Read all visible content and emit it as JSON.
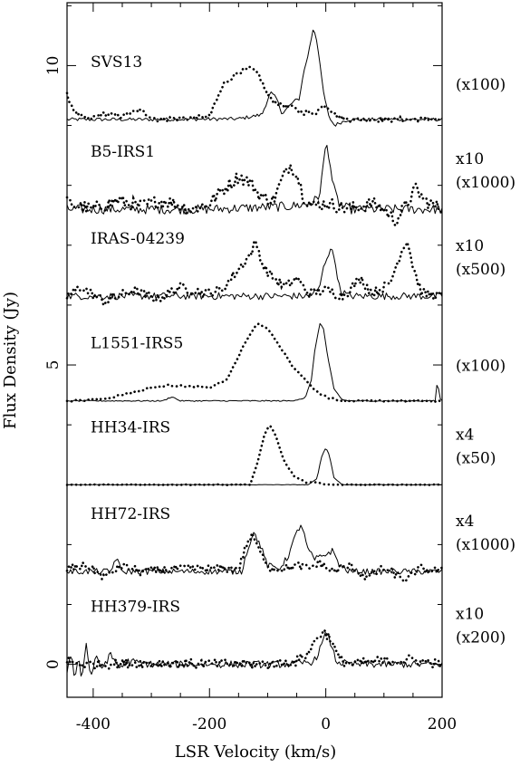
{
  "chart_data": {
    "type": "line",
    "xlabel": "LSR Velocity (km/s)",
    "ylabel": "Flux Density (Jy)",
    "xlim": [
      -445,
      200
    ],
    "ylim": [
      -0.55,
      11.05
    ],
    "xticks": [
      -400,
      -200,
      0,
      200
    ],
    "xtick_labels": [
      "-400",
      "-200",
      "0",
      "200"
    ],
    "yticks": [
      0,
      5,
      10
    ],
    "ytick_labels": [
      "0",
      "5",
      "10"
    ],
    "grid": false,
    "legend": "none",
    "line_styles": {
      "solid": "solid",
      "dotted": "dotted"
    },
    "panels": [
      {
        "label": "SVS13",
        "scale_labels": [
          "(x100)"
        ],
        "baseline": 9.1,
        "noise": 0.03,
        "solid": [
          [
            -445,
            0
          ],
          [
            -340,
            0
          ],
          [
            -300,
            0
          ],
          [
            -150,
            0.01
          ],
          [
            -110,
            0.08
          ],
          [
            -95,
            0.45
          ],
          [
            -85,
            0.35
          ],
          [
            -75,
            0.1
          ],
          [
            -65,
            0.2
          ],
          [
            -55,
            0.3
          ],
          [
            -45,
            0.35
          ],
          [
            -40,
            0.7
          ],
          [
            -30,
            1.1
          ],
          [
            -22,
            1.5
          ],
          [
            -18,
            1.45
          ],
          [
            -12,
            1.1
          ],
          [
            -5,
            0.5
          ],
          [
            5,
            0.05
          ],
          [
            15,
            -0.1
          ],
          [
            25,
            -0.05
          ],
          [
            40,
            0
          ],
          [
            200,
            0
          ]
        ],
        "dotted": [
          [
            -445,
            0.4
          ],
          [
            -430,
            0.1
          ],
          [
            -410,
            0
          ],
          [
            -380,
            0.1
          ],
          [
            -355,
            0.05
          ],
          [
            -320,
            0.15
          ],
          [
            -290,
            0
          ],
          [
            -250,
            0.02
          ],
          [
            -200,
            0.05
          ],
          [
            -175,
            0.6
          ],
          [
            -150,
            0.8
          ],
          [
            -130,
            0.85
          ],
          [
            -115,
            0.75
          ],
          [
            -100,
            0.4
          ],
          [
            -80,
            0.25
          ],
          [
            -60,
            0.2
          ],
          [
            -40,
            0.12
          ],
          [
            -20,
            0.1
          ],
          [
            0,
            0.25
          ],
          [
            20,
            0.05
          ],
          [
            40,
            0
          ],
          [
            200,
            0
          ]
        ]
      },
      {
        "label": "B5-IRS1",
        "scale_labels": [
          "x10",
          "(x1000)"
        ],
        "baseline": 7.6,
        "noise": 0.08,
        "solid": [
          [
            -445,
            0
          ],
          [
            -200,
            0
          ],
          [
            -60,
            0.05
          ],
          [
            -25,
            0.1
          ],
          [
            -12,
            0.2
          ],
          [
            -5,
            0.65
          ],
          [
            0,
            1.1
          ],
          [
            6,
            0.9
          ],
          [
            12,
            0.4
          ],
          [
            22,
            0.1
          ],
          [
            40,
            0
          ],
          [
            200,
            0
          ]
        ],
        "dotted": [
          [
            -445,
            0.1
          ],
          [
            -400,
            0
          ],
          [
            -360,
            0.15
          ],
          [
            -320,
            0.05
          ],
          [
            -280,
            0.15
          ],
          [
            -230,
            0
          ],
          [
            -200,
            0.1
          ],
          [
            -180,
            0.3
          ],
          [
            -150,
            0.55
          ],
          [
            -130,
            0.45
          ],
          [
            -110,
            0.2
          ],
          [
            -90,
            0.15
          ],
          [
            -75,
            0.5
          ],
          [
            -62,
            0.75
          ],
          [
            -50,
            0.6
          ],
          [
            -38,
            0.2
          ],
          [
            -20,
            0.05
          ],
          [
            0,
            0.1
          ],
          [
            40,
            0
          ],
          [
            80,
            0.1
          ],
          [
            100,
            0
          ],
          [
            120,
            -0.2
          ],
          [
            140,
            0.1
          ],
          [
            155,
            0.35
          ],
          [
            170,
            0.15
          ],
          [
            200,
            0
          ]
        ]
      },
      {
        "label": "IRAS-04239",
        "scale_labels": [
          "x10",
          "(x500)"
        ],
        "baseline": 6.15,
        "noise": 0.06,
        "solid": [
          [
            -445,
            0
          ],
          [
            -30,
            0
          ],
          [
            -12,
            0.1
          ],
          [
            -2,
            0.55
          ],
          [
            8,
            0.8
          ],
          [
            16,
            0.6
          ],
          [
            24,
            0.1
          ],
          [
            40,
            0
          ],
          [
            200,
            0
          ]
        ],
        "dotted": [
          [
            -445,
            0
          ],
          [
            -420,
            0.15
          ],
          [
            -380,
            -0.1
          ],
          [
            -330,
            0.1
          ],
          [
            -290,
            -0.05
          ],
          [
            -250,
            0.15
          ],
          [
            -210,
            0.05
          ],
          [
            -180,
            0.1
          ],
          [
            -150,
            0.45
          ],
          [
            -130,
            0.7
          ],
          [
            -120,
            0.9
          ],
          [
            -108,
            0.5
          ],
          [
            -90,
            0.3
          ],
          [
            -70,
            0.15
          ],
          [
            -50,
            0.3
          ],
          [
            -30,
            0.05
          ],
          [
            0,
            0.1
          ],
          [
            30,
            0
          ],
          [
            60,
            0.3
          ],
          [
            80,
            0.05
          ],
          [
            110,
            0.2
          ],
          [
            128,
            0.7
          ],
          [
            140,
            0.95
          ],
          [
            150,
            0.5
          ],
          [
            165,
            0.05
          ],
          [
            200,
            0
          ]
        ]
      },
      {
        "label": "L1551-IRS5",
        "scale_labels": [
          "(x100)"
        ],
        "baseline": 4.4,
        "noise": 0.01,
        "solid": [
          [
            -445,
            0
          ],
          [
            -280,
            0
          ],
          [
            -265,
            0.07
          ],
          [
            -250,
            0
          ],
          [
            -60,
            0
          ],
          [
            -35,
            0.05
          ],
          [
            -25,
            0.35
          ],
          [
            -18,
            0.9
          ],
          [
            -10,
            1.3
          ],
          [
            -4,
            1.2
          ],
          [
            4,
            0.7
          ],
          [
            14,
            0.2
          ],
          [
            28,
            0.02
          ],
          [
            40,
            0
          ],
          [
            188,
            0
          ],
          [
            192,
            0.35
          ],
          [
            196,
            0.05
          ],
          [
            200,
            0
          ]
        ],
        "dotted": [
          [
            -445,
            0
          ],
          [
            -390,
            0.02
          ],
          [
            -340,
            0.12
          ],
          [
            -300,
            0.22
          ],
          [
            -270,
            0.26
          ],
          [
            -230,
            0.24
          ],
          [
            -200,
            0.22
          ],
          [
            -170,
            0.35
          ],
          [
            -145,
            0.85
          ],
          [
            -125,
            1.2
          ],
          [
            -115,
            1.3
          ],
          [
            -95,
            1.15
          ],
          [
            -75,
            0.85
          ],
          [
            -55,
            0.55
          ],
          [
            -35,
            0.35
          ],
          [
            -15,
            0.15
          ],
          [
            5,
            0.05
          ],
          [
            30,
            0
          ],
          [
            200,
            0
          ]
        ]
      },
      {
        "label": "HH34-IRS",
        "scale_labels": [
          "x4",
          "(x50)"
        ],
        "baseline": 3.0,
        "noise": 0.004,
        "solid": [
          [
            -445,
            0
          ],
          [
            -30,
            0
          ],
          [
            -15,
            0.1
          ],
          [
            -8,
            0.45
          ],
          [
            0,
            0.62
          ],
          [
            6,
            0.5
          ],
          [
            14,
            0.12
          ],
          [
            28,
            0
          ],
          [
            200,
            0
          ]
        ],
        "dotted": [
          [
            -445,
            0
          ],
          [
            -130,
            0
          ],
          [
            -118,
            0.35
          ],
          [
            -105,
            0.85
          ],
          [
            -96,
            1.0
          ],
          [
            -86,
            0.82
          ],
          [
            -72,
            0.4
          ],
          [
            -55,
            0.15
          ],
          [
            -35,
            0.04
          ],
          [
            -15,
            0.04
          ],
          [
            0,
            0
          ],
          [
            200,
            0
          ]
        ]
      },
      {
        "label": "HH72-IRS",
        "scale_labels": [
          "x4",
          "(x1000)"
        ],
        "baseline": 1.55,
        "noise": 0.05,
        "solid": [
          [
            -445,
            0
          ],
          [
            -370,
            0
          ],
          [
            -360,
            0.25
          ],
          [
            -352,
            0
          ],
          [
            -145,
            0
          ],
          [
            -135,
            0.35
          ],
          [
            -125,
            0.65
          ],
          [
            -115,
            0.5
          ],
          [
            -100,
            0.1
          ],
          [
            -80,
            0.05
          ],
          [
            -65,
            0.25
          ],
          [
            -50,
            0.65
          ],
          [
            -42,
            0.8
          ],
          [
            -32,
            0.4
          ],
          [
            -20,
            0.2
          ],
          [
            -8,
            0.25
          ],
          [
            12,
            0.35
          ],
          [
            24,
            0.1
          ],
          [
            40,
            0
          ],
          [
            200,
            0
          ]
        ],
        "dotted": [
          [
            -445,
            0.05
          ],
          [
            -410,
            0.1
          ],
          [
            -380,
            -0.1
          ],
          [
            -350,
            0.1
          ],
          [
            -320,
            0
          ],
          [
            -250,
            0.05
          ],
          [
            -150,
            0.05
          ],
          [
            -135,
            0.5
          ],
          [
            -125,
            0.6
          ],
          [
            -115,
            0.35
          ],
          [
            -95,
            0.05
          ],
          [
            -70,
            0.05
          ],
          [
            -50,
            0.1
          ],
          [
            -30,
            0.05
          ],
          [
            -10,
            0.15
          ],
          [
            10,
            0
          ],
          [
            40,
            0.1
          ],
          [
            70,
            -0.1
          ],
          [
            100,
            0.05
          ],
          [
            140,
            -0.15
          ],
          [
            160,
            0.05
          ],
          [
            200,
            0
          ]
        ]
      },
      {
        "label": "HH379-IRS",
        "scale_labels": [
          "x10",
          "(x200)"
        ],
        "baseline": 0.0,
        "noise": 0.06,
        "solid": [
          [
            -445,
            -0.1
          ],
          [
            -438,
            0.2
          ],
          [
            -432,
            -0.2
          ],
          [
            -425,
            0.1
          ],
          [
            -420,
            -0.25
          ],
          [
            -412,
            0.35
          ],
          [
            -405,
            -0.2
          ],
          [
            -395,
            0.1
          ],
          [
            -385,
            -0.05
          ],
          [
            -370,
            0.15
          ],
          [
            -355,
            -0.05
          ],
          [
            -340,
            0.05
          ],
          [
            -300,
            0
          ],
          [
            -60,
            0
          ],
          [
            -20,
            0.05
          ],
          [
            -8,
            0.3
          ],
          [
            2,
            0.55
          ],
          [
            10,
            0.3
          ],
          [
            18,
            0.05
          ],
          [
            40,
            0
          ],
          [
            200,
            0
          ]
        ],
        "dotted": [
          [
            -445,
            0.05
          ],
          [
            -420,
            0
          ],
          [
            -300,
            0.02
          ],
          [
            -100,
            0
          ],
          [
            -50,
            0.05
          ],
          [
            -30,
            0.2
          ],
          [
            -15,
            0.45
          ],
          [
            -2,
            0.55
          ],
          [
            10,
            0.4
          ],
          [
            22,
            0.1
          ],
          [
            40,
            0
          ],
          [
            90,
            0.05
          ],
          [
            150,
            0.08
          ],
          [
            200,
            0
          ]
        ]
      }
    ]
  }
}
